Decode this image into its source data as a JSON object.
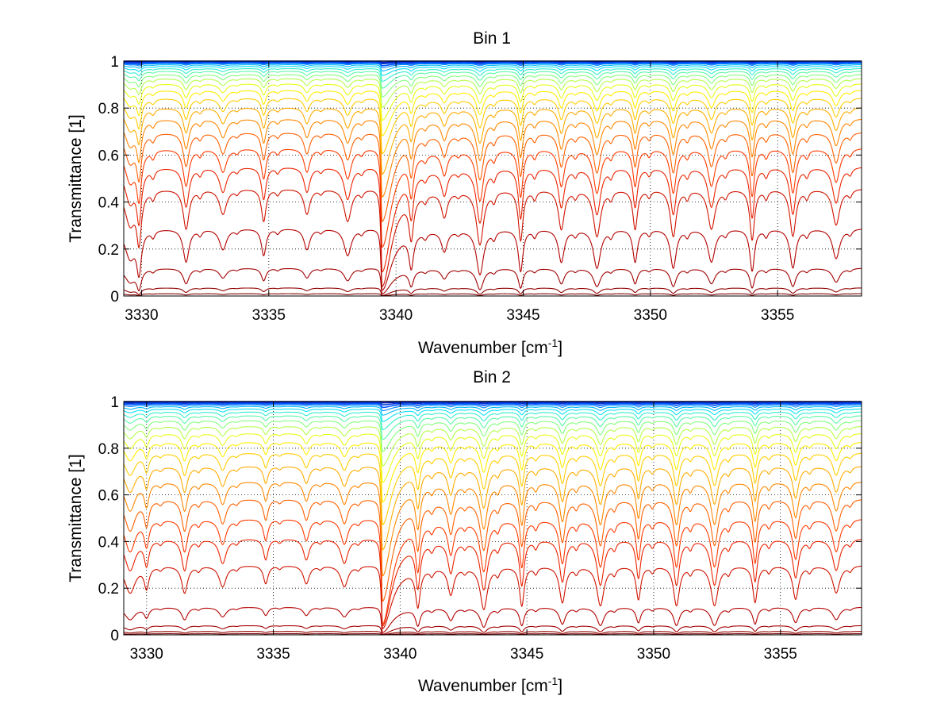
{
  "chart_data": [
    {
      "type": "line",
      "title": "Bin 1",
      "xlabel_base": "Wavenumber [cm",
      "xlabel_sup": "-1",
      "xlabel_end": "]",
      "ylabel": "Transmittance [1]",
      "xlim": [
        3329.3,
        3358.3
      ],
      "ylim": [
        0,
        1
      ],
      "grid": true,
      "x_ticks": [
        3330,
        3335,
        3340,
        3345,
        3350,
        3355
      ],
      "x_tick_labels": [
        "3330",
        "3335",
        "3340",
        "3345",
        "3350",
        "3355"
      ],
      "y_ticks": [
        0,
        0.2,
        0.4,
        0.6,
        0.8,
        1
      ],
      "y_tick_labels": [
        "0",
        "0.2",
        "0.4",
        "0.6",
        "0.8",
        "1"
      ],
      "series_count": 24,
      "colormap": [
        "#00008f",
        "#0050ff",
        "#00dfff",
        "#70ff8f",
        "#ffff00",
        "#ff9f00",
        "#ff3000",
        "#b00000",
        "#800000"
      ],
      "baselines": [
        1.0,
        0.998,
        0.996,
        0.993,
        0.99,
        0.985,
        0.978,
        0.969,
        0.958,
        0.944,
        0.927,
        0.905,
        0.878,
        0.845,
        0.805,
        0.757,
        0.7,
        0.632,
        0.553,
        0.46,
        0.29,
        0.12,
        0.035,
        0.01
      ],
      "left_edge_minimum": 0.2,
      "strong_line_position": 3339.45,
      "strong_line_minimum": 0.1,
      "absorption_lines": [
        {
          "x": 3329.9,
          "depth": 0.65
        },
        {
          "x": 3331.75,
          "depth": 0.55
        },
        {
          "x": 3333.2,
          "depth": 0.35
        },
        {
          "x": 3334.8,
          "depth": 0.45
        },
        {
          "x": 3336.5,
          "depth": 0.35
        },
        {
          "x": 3338.1,
          "depth": 0.45
        },
        {
          "x": 3340.6,
          "depth": 0.55
        },
        {
          "x": 3341.9,
          "depth": 0.35
        },
        {
          "x": 3343.3,
          "depth": 0.75
        },
        {
          "x": 3344.9,
          "depth": 0.7
        },
        {
          "x": 3346.5,
          "depth": 0.55
        },
        {
          "x": 3347.9,
          "depth": 0.65
        },
        {
          "x": 3349.4,
          "depth": 0.55
        },
        {
          "x": 3350.9,
          "depth": 0.65
        },
        {
          "x": 3352.4,
          "depth": 0.55
        },
        {
          "x": 3354.0,
          "depth": 0.7
        },
        {
          "x": 3355.6,
          "depth": 0.65
        },
        {
          "x": 3357.3,
          "depth": 0.5
        }
      ]
    },
    {
      "type": "line",
      "title": "Bin 2",
      "xlabel_base": "Wavenumber [cm",
      "xlabel_sup": "-1",
      "xlabel_end": "]",
      "ylabel": "Transmittance [1]",
      "xlim": [
        3329.1,
        3358.2
      ],
      "ylim": [
        0,
        1
      ],
      "grid": true,
      "x_ticks": [
        3330,
        3335,
        3340,
        3345,
        3350,
        3355
      ],
      "x_tick_labels": [
        "3330",
        "3335",
        "3340",
        "3345",
        "3350",
        "3355"
      ],
      "y_ticks": [
        0,
        0.2,
        0.4,
        0.6,
        0.8,
        1
      ],
      "y_tick_labels": [
        "0",
        "0.2",
        "0.4",
        "0.6",
        "0.8",
        "1"
      ],
      "series_count": 24,
      "colormap": [
        "#00008f",
        "#0050ff",
        "#00dfff",
        "#70ff8f",
        "#ffff00",
        "#ff9f00",
        "#ff3000",
        "#b00000",
        "#800000"
      ],
      "baselines": [
        1.0,
        0.998,
        0.995,
        0.991,
        0.986,
        0.979,
        0.969,
        0.956,
        0.94,
        0.92,
        0.895,
        0.865,
        0.828,
        0.782,
        0.726,
        0.66,
        0.585,
        0.5,
        0.415,
        0.3,
        0.12,
        0.04,
        0.015,
        0.005
      ],
      "left_edge_minimum": 0.25,
      "strong_line_position": 3339.3,
      "strong_line_minimum": 0.1,
      "absorption_lines": [
        {
          "x": 3330.0,
          "depth": 0.35
        },
        {
          "x": 3331.5,
          "depth": 0.45
        },
        {
          "x": 3333.0,
          "depth": 0.35
        },
        {
          "x": 3334.7,
          "depth": 0.3
        },
        {
          "x": 3336.3,
          "depth": 0.3
        },
        {
          "x": 3337.8,
          "depth": 0.35
        },
        {
          "x": 3340.7,
          "depth": 0.6
        },
        {
          "x": 3342.0,
          "depth": 0.45
        },
        {
          "x": 3343.3,
          "depth": 0.7
        },
        {
          "x": 3344.8,
          "depth": 0.65
        },
        {
          "x": 3346.4,
          "depth": 0.6
        },
        {
          "x": 3347.9,
          "depth": 0.65
        },
        {
          "x": 3349.4,
          "depth": 0.55
        },
        {
          "x": 3350.9,
          "depth": 0.65
        },
        {
          "x": 3352.4,
          "depth": 0.65
        },
        {
          "x": 3354.0,
          "depth": 0.6
        },
        {
          "x": 3355.6,
          "depth": 0.55
        },
        {
          "x": 3357.2,
          "depth": 0.45
        }
      ]
    }
  ]
}
